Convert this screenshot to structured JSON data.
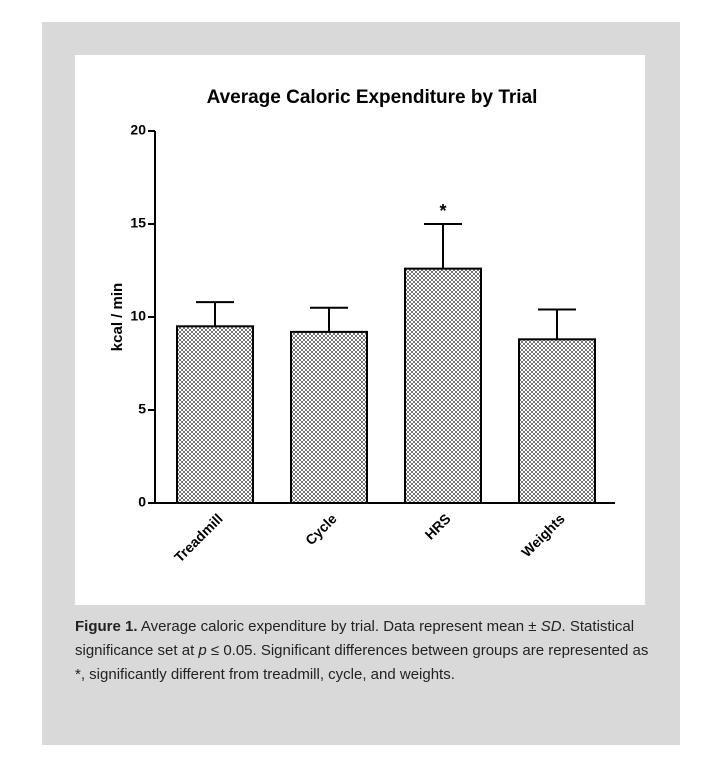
{
  "chart_data": {
    "type": "bar",
    "title": "Average Caloric Expenditure by Trial",
    "y_label": "kcal / min",
    "categories": [
      "Treadmill",
      "Cycle",
      "HRS",
      "Weights"
    ],
    "values": [
      9.5,
      9.2,
      12.6,
      8.8
    ],
    "errors": [
      1.3,
      1.3,
      2.4,
      1.6
    ],
    "color": "#777777",
    "ylim": [
      0,
      20
    ],
    "yticks": [
      0,
      5,
      10,
      15,
      20
    ],
    "annotations": [
      {
        "text": "*",
        "x": "HRS"
      }
    ]
  },
  "caption": {
    "label": "Figure 1.",
    "parts": [
      "Average caloric expenditure by trial. Data represent mean ± ",
      "SD",
      ". Statistical significance set at ",
      "p",
      " ≤ 0.05. Significant differences between groups are represented as *, significantly different from treadmill, cycle, and weights."
    ]
  }
}
